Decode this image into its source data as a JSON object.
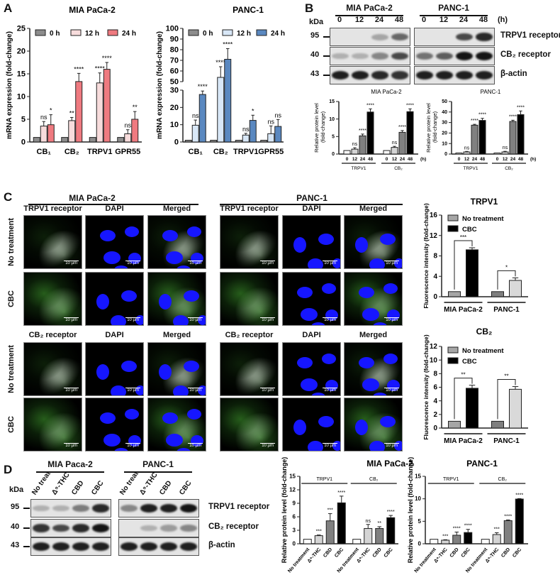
{
  "panels": {
    "a": "A",
    "b": "B",
    "c": "C",
    "d": "D"
  },
  "panel_b_blot": {
    "groups": [
      "MIA PaCa-2",
      "PANC-1"
    ],
    "kda_label": "kDa",
    "lanes": [
      "0",
      "12",
      "24",
      "48"
    ],
    "unit": "(h)",
    "rows": [
      {
        "kda": "95",
        "label": "TRPV1 receptor",
        "band_intensity": [
          [
            0,
            0,
            0.25,
            0.55
          ],
          [
            0,
            0,
            0.7,
            0.85
          ]
        ]
      },
      {
        "kda": "40",
        "label": "CB₂ receptor",
        "band_intensity": [
          [
            0.2,
            0.2,
            0.4,
            0.7
          ],
          [
            0.5,
            0.6,
            1,
            1
          ]
        ]
      },
      {
        "kda": "43",
        "label": "β-actin",
        "band_intensity": [
          [
            0.9,
            0.9,
            0.85,
            0.8
          ],
          [
            0.9,
            0.9,
            0.9,
            0.9
          ]
        ]
      }
    ]
  },
  "panel_c_images": {
    "groups": [
      "MIA PaCa-2",
      "PANC-1"
    ],
    "sections": [
      {
        "marker": "TRPV1 receptor",
        "columns": [
          "TRPV1 receptor",
          "DAPI",
          "Merged"
        ],
        "rows": [
          "No treatment",
          "CBC"
        ]
      },
      {
        "marker": "CB₂ receptor",
        "columns": [
          "CB₂ receptor",
          "DAPI",
          "Merged"
        ],
        "rows": [
          "No treatment",
          "CBC"
        ]
      }
    ],
    "scale_bar": "10 µm"
  },
  "panel_d_blot": {
    "groups": [
      "MIA Paca-2",
      "PANC-1"
    ],
    "kda_label": "kDa",
    "lanes": [
      "No treat",
      "Δ⁹-THC",
      "CBD",
      "CBC"
    ],
    "rows": [
      {
        "kda": "95",
        "label": "TRPV1 receptor",
        "band_intensity": [
          [
            0.2,
            0.2,
            0.45,
            0.85
          ],
          [
            0.4,
            0.9,
            0.9,
            1
          ]
        ]
      },
      {
        "kda": "40",
        "label": "CB₂ receptor",
        "band_intensity": [
          [
            0.8,
            0.7,
            0.85,
            0.95
          ],
          [
            0,
            0.2,
            0.3,
            0.4
          ]
        ]
      },
      {
        "kda": "43",
        "label": "β-actin",
        "band_intensity": [
          [
            0.9,
            0.9,
            0.9,
            0.9
          ],
          [
            0.9,
            0.9,
            0.9,
            0.9
          ]
        ]
      }
    ]
  },
  "chart_data": [
    {
      "id": "a1",
      "type": "bar",
      "title": "MIA PaCa-2",
      "ylabel": "mRNA expression (fold-change)",
      "ylim": [
        0,
        25
      ],
      "yticks": [
        0,
        5,
        10,
        15,
        20,
        25
      ],
      "categories": [
        "CB₁",
        "CB₂",
        "TRPV1",
        "GPR55"
      ],
      "legend": "top",
      "series": [
        {
          "name": "0 h",
          "color": "#8c8c8c",
          "values": [
            1,
            1,
            1,
            1
          ],
          "errors": [
            0,
            0,
            0,
            0
          ],
          "significance": [
            "",
            "",
            "",
            ""
          ]
        },
        {
          "name": "12 h",
          "color": "#f7dcdc",
          "values": [
            3.5,
            4.7,
            13,
            1.8
          ],
          "errors": [
            1,
            0.7,
            2.2,
            0.9
          ],
          "significance": [
            "ns",
            "**",
            "****",
            "ns"
          ]
        },
        {
          "name": "24 h",
          "color": "#ef7a80",
          "values": [
            3.8,
            13.3,
            16,
            5
          ],
          "errors": [
            2.2,
            1.8,
            1.5,
            1.7
          ],
          "significance": [
            "*",
            "****",
            "****",
            "**"
          ]
        }
      ]
    },
    {
      "id": "a2",
      "type": "bar",
      "title": "PANC-1",
      "ylabel": "mRNA expression (fold-change)",
      "ylim": [
        0,
        100
      ],
      "axis_break": [
        30,
        50
      ],
      "yticks": [
        0,
        10,
        20,
        30,
        50,
        60,
        70,
        80,
        90,
        100
      ],
      "categories": [
        "CB₁",
        "CB₂",
        "TRPV1",
        "GPR55"
      ],
      "legend": "top",
      "series": [
        {
          "name": "0 h",
          "color": "#8c8c8c",
          "values": [
            1,
            1,
            1,
            1
          ],
          "errors": [
            0,
            0,
            0,
            0
          ],
          "significance": [
            "",
            "",
            "",
            ""
          ]
        },
        {
          "name": "12 h",
          "color": "#d8e7f7",
          "values": [
            9.7,
            54,
            4,
            4.8
          ],
          "errors": [
            3,
            10,
            1,
            4.5
          ],
          "significance": [
            "ns",
            "****",
            "ns",
            "ns"
          ]
        },
        {
          "name": "24 h",
          "color": "#5a88c0",
          "values": [
            27.5,
            71,
            12.5,
            9
          ],
          "errors": [
            2,
            10,
            3,
            4
          ],
          "significance": [
            "****",
            "****",
            "*",
            "ns"
          ]
        }
      ]
    },
    {
      "id": "b1",
      "type": "bar",
      "title": "MIA PaCa-2",
      "ylabel": "Relative protein level (fold-change)",
      "ylim": [
        0,
        15
      ],
      "yticks": [
        0,
        5,
        10,
        15
      ],
      "categories": [
        "TRPV1",
        "CB₂"
      ],
      "unit": "(h)",
      "series": [
        {
          "name": "0",
          "color": "#ffffff",
          "values": [
            1,
            1
          ],
          "errors": [
            0,
            0
          ],
          "significance": [
            "",
            ""
          ]
        },
        {
          "name": "12",
          "color": "#d4d4d4",
          "values": [
            1.4,
            1.9
          ],
          "errors": [
            0.4,
            0.3
          ],
          "significance": [
            "ns",
            "ns"
          ]
        },
        {
          "name": "24",
          "color": "#808080",
          "values": [
            5.2,
            6.2
          ],
          "errors": [
            0.5,
            0.5
          ],
          "significance": [
            "****",
            "****"
          ]
        },
        {
          "name": "48",
          "color": "#000000",
          "values": [
            12,
            12.1
          ],
          "errors": [
            0.9,
            0.8
          ],
          "significance": [
            "****",
            "****"
          ]
        }
      ]
    },
    {
      "id": "b2",
      "type": "bar",
      "title": "PANC-1",
      "ylabel": "Relative protein level (fold-change)",
      "ylim": [
        0,
        50
      ],
      "yticks": [
        0,
        10,
        20,
        30,
        40,
        50
      ],
      "categories": [
        "TRPV1",
        "CB₂"
      ],
      "unit": "(h)",
      "series": [
        {
          "name": "0",
          "color": "#ffffff",
          "values": [
            1,
            1
          ],
          "errors": [
            0,
            0
          ],
          "significance": [
            "",
            ""
          ]
        },
        {
          "name": "12",
          "color": "#d4d4d4",
          "values": [
            2,
            2
          ],
          "errors": [
            0.5,
            0.6
          ],
          "significance": [
            "ns",
            "ns"
          ]
        },
        {
          "name": "24",
          "color": "#808080",
          "values": [
            27.5,
            31
          ],
          "errors": [
            0.8,
            1.2
          ],
          "significance": [
            "****",
            "****"
          ]
        },
        {
          "name": "48",
          "color": "#000000",
          "values": [
            32,
            37.5
          ],
          "errors": [
            2,
            3.5
          ],
          "significance": [
            "****",
            "****"
          ]
        }
      ]
    },
    {
      "id": "c1",
      "type": "bar",
      "title": "TRPV1",
      "ylabel": "Fluorescence intensity (fold-change)",
      "ylim": [
        0,
        16
      ],
      "yticks": [
        0,
        4,
        8,
        12,
        16
      ],
      "categories": [
        "MIA PaCa-2",
        "PANC-1"
      ],
      "legend": "top-left",
      "series": [
        {
          "name": "No treatment",
          "color": "#a6a6a6",
          "colors": [
            "#a6a6a6",
            "#7f7f7f"
          ],
          "values": [
            1,
            1
          ],
          "errors": [
            0,
            0
          ],
          "significance": [
            "",
            ""
          ]
        },
        {
          "name": "CBC",
          "color": "#000000",
          "colors": [
            "#000000",
            "#d9d9d9"
          ],
          "values": [
            9.2,
            3.2
          ],
          "errors": [
            0.4,
            0.5
          ],
          "significance": [
            "",
            ""
          ]
        }
      ],
      "comparisons": [
        "***",
        "*"
      ]
    },
    {
      "id": "c2",
      "type": "bar",
      "title": "CB₂",
      "ylabel": "Fluorescence intensity (fold-change)",
      "ylim": [
        0,
        12
      ],
      "yticks": [
        0,
        2,
        4,
        6,
        8,
        10,
        12
      ],
      "categories": [
        "MIA PaCa-2",
        "PANC-1"
      ],
      "legend": "top-left",
      "series": [
        {
          "name": "No treatment",
          "color": "#a6a6a6",
          "colors": [
            "#a6a6a6",
            "#7f7f7f"
          ],
          "values": [
            1,
            1
          ],
          "errors": [
            0,
            0
          ],
          "significance": [
            "",
            ""
          ]
        },
        {
          "name": "CBC",
          "color": "#000000",
          "colors": [
            "#000000",
            "#d9d9d9"
          ],
          "values": [
            5.85,
            5.7
          ],
          "errors": [
            0.45,
            0.4
          ],
          "significance": [
            "",
            ""
          ]
        }
      ],
      "comparisons": [
        "**",
        "**"
      ]
    },
    {
      "id": "d1",
      "type": "bar",
      "title": "MIA PaCa-2",
      "ylabel": "Relative protein level (fold-change)",
      "ylim": [
        0,
        15
      ],
      "yticks": [
        0,
        3,
        6,
        9,
        12,
        15
      ],
      "categories": [
        "TRPV1",
        "CB₂"
      ],
      "series": [
        {
          "name": "No treatment",
          "color": "#ffffff",
          "values": [
            1,
            1
          ],
          "errors": [
            0,
            0
          ],
          "significance": [
            "",
            ""
          ]
        },
        {
          "name": "Δ⁹-THC",
          "color": "#d4d4d4",
          "values": [
            1.8,
            3.4
          ],
          "errors": [
            0.15,
            0.9
          ],
          "significance": [
            "***",
            "ns"
          ]
        },
        {
          "name": "CBD",
          "color": "#808080",
          "values": [
            5.1,
            3.4
          ],
          "errors": [
            1.6,
            0.4
          ],
          "significance": [
            "***",
            "**"
          ]
        },
        {
          "name": "CBC",
          "color": "#000000",
          "values": [
            9.1,
            5.8
          ],
          "errors": [
            1.5,
            0.5
          ],
          "significance": [
            "****",
            "****"
          ]
        }
      ]
    },
    {
      "id": "d2",
      "type": "bar",
      "title": "PANC-1",
      "ylabel": "Relative protein level (fold-change)",
      "ylim": [
        0,
        15
      ],
      "yticks": [
        0,
        5,
        10,
        15
      ],
      "categories": [
        "TRPV1",
        "CB₂"
      ],
      "series": [
        {
          "name": "No treatment",
          "color": "#ffffff",
          "values": [
            1,
            1
          ],
          "errors": [
            0,
            0
          ],
          "significance": [
            "",
            ""
          ]
        },
        {
          "name": "Δ⁹-THC",
          "color": "#d4d4d4",
          "values": [
            0.8,
            2.05
          ],
          "errors": [
            0.1,
            0.4
          ],
          "significance": [
            "***",
            "***"
          ]
        },
        {
          "name": "CBD",
          "color": "#808080",
          "values": [
            1.9,
            5.15
          ],
          "errors": [
            0.7,
            0.15
          ],
          "significance": [
            "****",
            "****"
          ]
        },
        {
          "name": "CBC",
          "color": "#000000",
          "values": [
            2.5,
            9.95
          ],
          "errors": [
            0.7,
            0.1
          ],
          "significance": [
            "****",
            "****"
          ]
        }
      ]
    }
  ]
}
